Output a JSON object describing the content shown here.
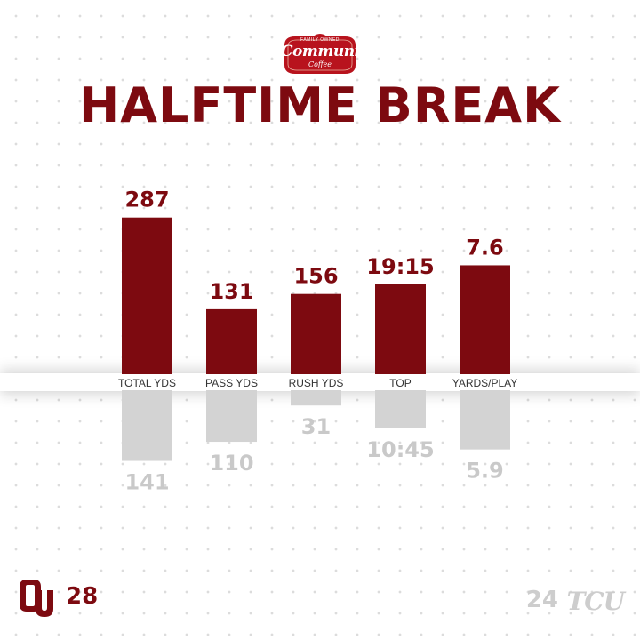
{
  "sponsor": {
    "tagline": "FAMILY OWNED",
    "name": "Community",
    "sub": "Coffee",
    "color": "#b8131d"
  },
  "title": "HALFTIME BREAK",
  "colors": {
    "home": "#7d0a10",
    "away": "#d3d3d3",
    "away_label": "#c9c9c9",
    "category_label": "#333333"
  },
  "chart_data": {
    "type": "bar",
    "categories": [
      "TOTAL YDS",
      "PASS YDS",
      "RUSH YDS",
      "TOP",
      "YARDS/PLAY"
    ],
    "series": [
      {
        "team": "OU",
        "labels": [
          "287",
          "131",
          "156",
          "19:15",
          "7.6"
        ],
        "values": [
          287,
          131,
          156,
          19.25,
          7.6
        ],
        "bar_height_fraction": [
          0.82,
          0.34,
          0.42,
          0.47,
          0.57
        ]
      },
      {
        "team": "TCU",
        "labels": [
          "141",
          "110",
          "31",
          "10:45",
          "5.9"
        ],
        "values": [
          141,
          110,
          31,
          10.75,
          5.9
        ],
        "bar_height_fraction": [
          0.37,
          0.27,
          0.08,
          0.2,
          0.31
        ]
      }
    ],
    "orientation": "mirrored-vertical",
    "grid": false,
    "legend": "none"
  },
  "footer": {
    "home": {
      "logo": "OU",
      "score": "28"
    },
    "away": {
      "score": "24",
      "logo": "TCU"
    }
  }
}
